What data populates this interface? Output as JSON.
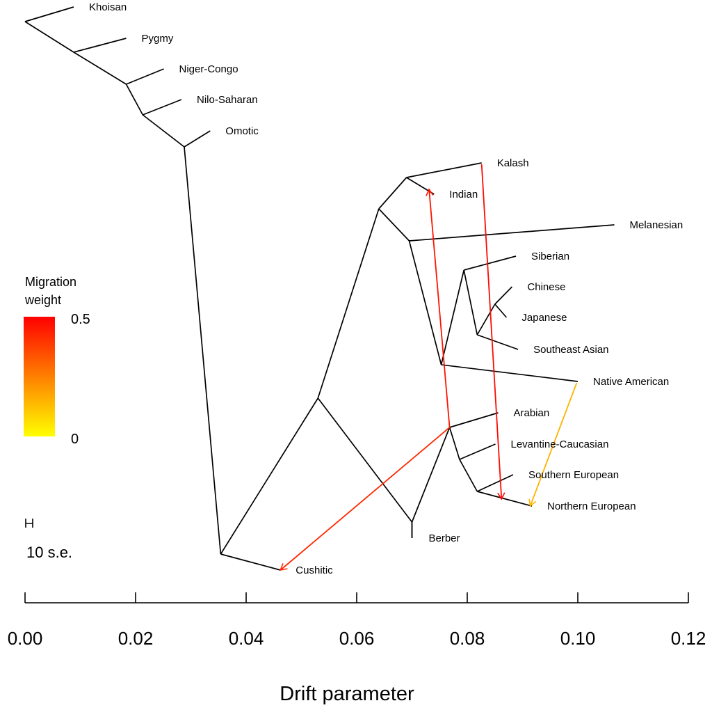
{
  "chart_data": {
    "type": "tree",
    "xlabel": "Drift parameter",
    "xlim": [
      0,
      0.12
    ],
    "x_ticks": [
      "0.00",
      "0.02",
      "0.04",
      "0.06",
      "0.08",
      "0.10",
      "0.12"
    ],
    "populations": [
      {
        "name": "Khoisan",
        "drift": 0.0088
      },
      {
        "name": "Pygmy",
        "drift": 0.0183
      },
      {
        "name": "Niger-Congo",
        "drift": 0.0251
      },
      {
        "name": "Nilo-Saharan",
        "drift": 0.0283
      },
      {
        "name": "Omotic",
        "drift": 0.0335
      },
      {
        "name": "Kalash",
        "drift": 0.0826
      },
      {
        "name": "Indian",
        "drift": 0.074
      },
      {
        "name": "Melanesian",
        "drift": 0.1066
      },
      {
        "name": "Siberian",
        "drift": 0.0888
      },
      {
        "name": "Chinese",
        "drift": 0.0881
      },
      {
        "name": "Japanese",
        "drift": 0.0871
      },
      {
        "name": "Southeast Asian",
        "drift": 0.0892
      },
      {
        "name": "Native American",
        "drift": 0.1
      },
      {
        "name": "Arabian",
        "drift": 0.0856
      },
      {
        "name": "Levantine-Caucasian",
        "drift": 0.0851
      },
      {
        "name": "Southern European",
        "drift": 0.0883
      },
      {
        "name": "Northern European",
        "drift": 0.0917
      },
      {
        "name": "Berber",
        "drift": 0.07
      },
      {
        "name": "Cushitic",
        "drift": 0.0462
      }
    ],
    "migrations": [
      {
        "from": "Kalash",
        "to": "Northern European",
        "weight": 0.48
      },
      {
        "from": "Arabian",
        "to": "Indian",
        "weight": 0.46
      },
      {
        "from": "Arabian",
        "to": "Cushitic",
        "weight": 0.42
      },
      {
        "from": "Native American",
        "to": "Northern European",
        "weight": 0.15
      }
    ],
    "legend": {
      "title_line1": "Migration",
      "title_line2": "weight",
      "max_label": "0.5",
      "min_label": "0",
      "color_max": "#ff0000",
      "color_min": "#ffff00"
    },
    "scale_bar_label": "10 s.e.",
    "line_color": "#000000"
  }
}
